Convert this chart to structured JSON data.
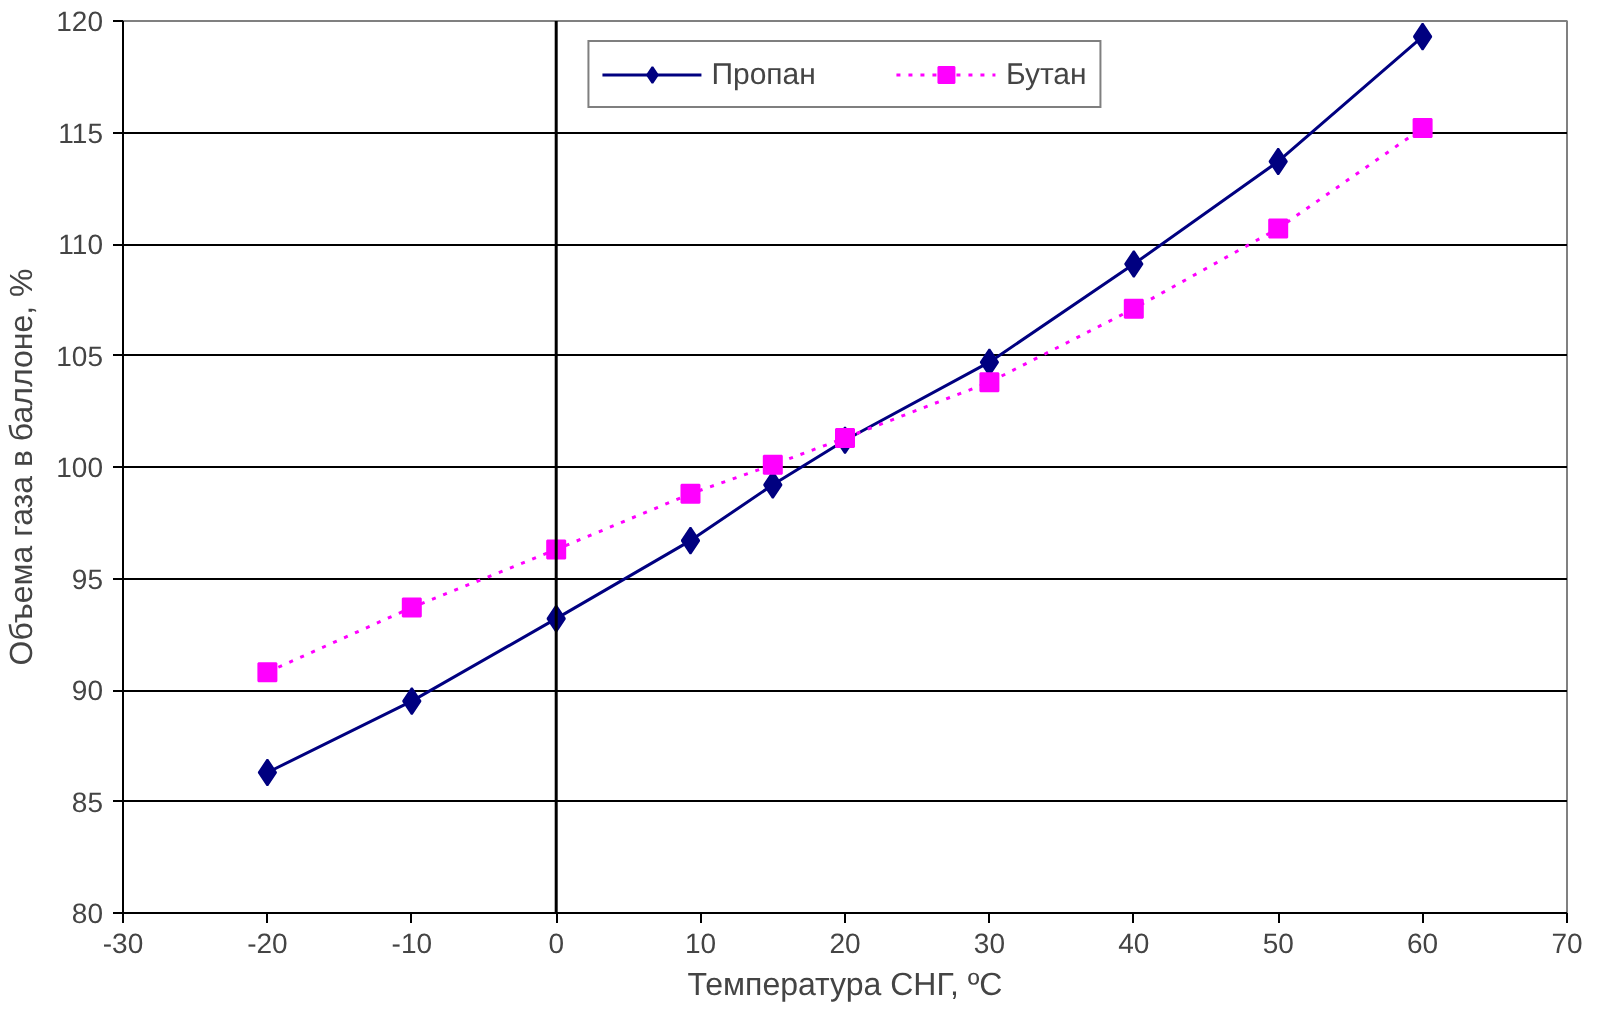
{
  "chart_data": {
    "type": "line",
    "xlabel": "Температура СНГ, ºC",
    "ylabel": "Объема газа в баллоне, %",
    "xlim": [
      -30,
      70
    ],
    "xticks": [
      -30,
      -20,
      -10,
      0,
      10,
      20,
      30,
      40,
      50,
      60,
      70
    ],
    "ylim": [
      80,
      120
    ],
    "yticks": [
      80,
      85,
      90,
      95,
      100,
      105,
      110,
      115,
      120
    ],
    "grid": "y",
    "legend": "top",
    "ref_lines": [
      {
        "axis": "x",
        "value": 0,
        "color": "#000000"
      }
    ],
    "series": [
      {
        "name": "Пропан",
        "color": "#000080",
        "marker": "diamond",
        "line_style": "solid",
        "x": [
          -20,
          -10,
          0,
          9.3,
          15,
          20,
          30,
          40,
          50,
          60
        ],
        "values": [
          86.3,
          89.5,
          93.2,
          96.7,
          99.2,
          101.2,
          104.7,
          109.1,
          113.7,
          119.3
        ]
      },
      {
        "name": "Бутан",
        "color": "#ff00ff",
        "marker": "square",
        "line_style": "dotted",
        "x": [
          -20,
          -10,
          0,
          9.3,
          15,
          20,
          30,
          40,
          50,
          60
        ],
        "values": [
          90.8,
          93.7,
          96.3,
          98.8,
          100.1,
          101.3,
          103.8,
          107.1,
          110.7,
          115.2
        ]
      }
    ]
  }
}
